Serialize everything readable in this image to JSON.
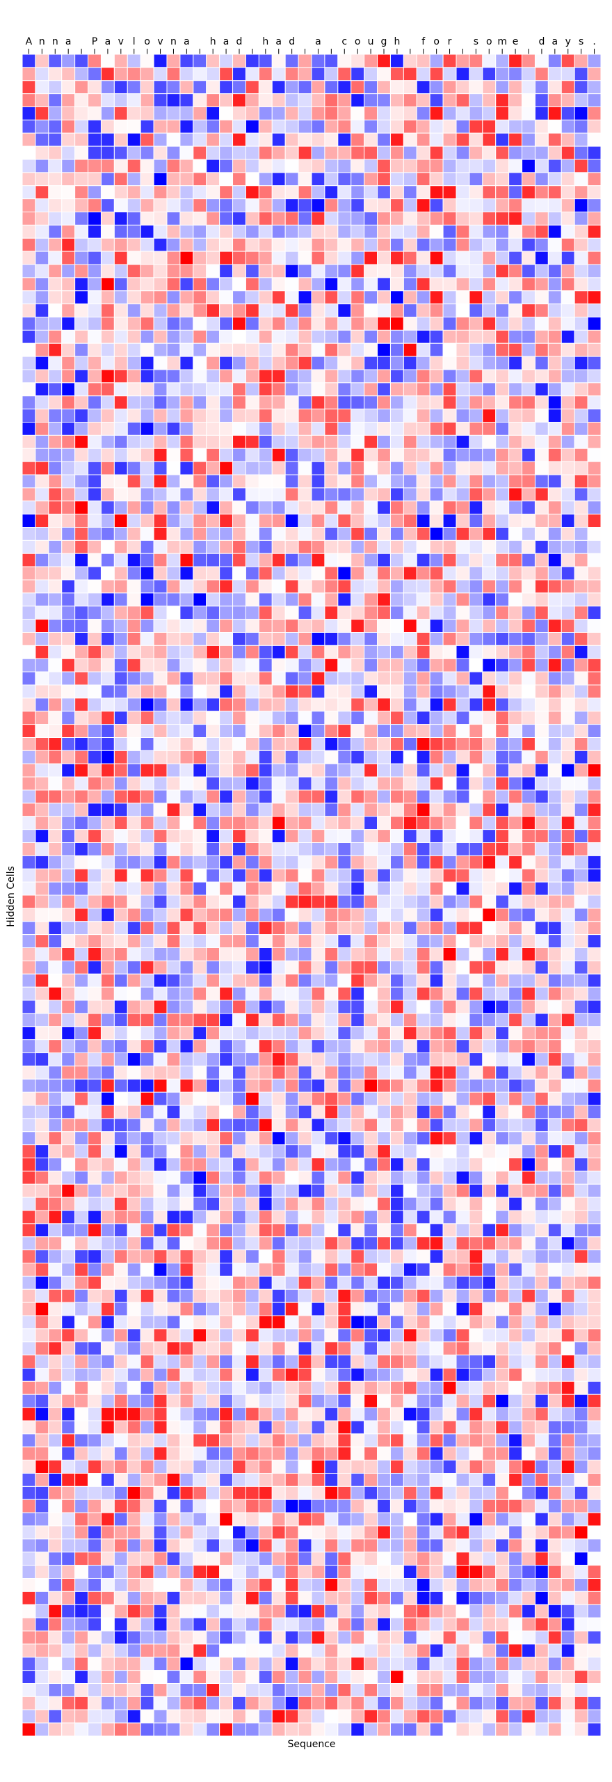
{
  "chart_data": {
    "type": "heatmap",
    "title": "",
    "xlabel": "Sequence",
    "ylabel": "Hidden Cells",
    "x_tick_labels": [
      "A",
      "n",
      "n",
      "a",
      " ",
      "P",
      "a",
      "v",
      "l",
      "o",
      "v",
      "n",
      "a",
      " ",
      "h",
      "a",
      "d",
      " ",
      "h",
      "a",
      "d",
      " ",
      "a",
      " ",
      "c",
      "o",
      "u",
      "g",
      "h",
      " ",
      "f",
      "o",
      "r",
      " ",
      "s",
      "o",
      "m",
      "e",
      " ",
      "d",
      "a",
      "y",
      "s",
      "."
    ],
    "n_rows": 128,
    "n_cols": 44,
    "value_range": [
      -1,
      1
    ],
    "colormap": "bwr",
    "colors": {
      "low": "#0000ff",
      "mid": "#ffffff",
      "high": "#ff0000",
      "grid": "#ffffff"
    },
    "grid": true,
    "legend": "none"
  }
}
